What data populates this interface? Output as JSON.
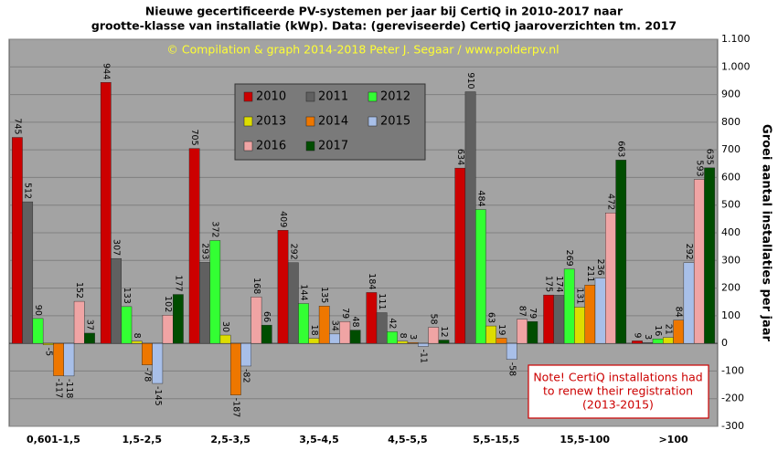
{
  "chart_data": {
    "type": "bar",
    "title": [
      "Nieuwe gecertificeerde PV-systemen per jaar bij CertiQ in 2010-2017 naar",
      "grootte-klasse van installatie (kWp). Data: (gereviseerde) CertiQ jaaroverzichten tm. 2017"
    ],
    "copyright": "© Compilation & graph 2014-2018 Peter J. Segaar / www.polderpv.nl",
    "note": [
      "Note! CertiQ installations had",
      "to renew their registration",
      "(2013-2015)"
    ],
    "ylabel": "Groei aantal installaties per jaar",
    "categories": [
      "0,601-1,5",
      "1,5-2,5",
      "2,5-3,5",
      "3,5-4,5",
      "4,5-5,5",
      "5,5-15,5",
      "15,5-100",
      ">100"
    ],
    "series": [
      {
        "name": "2010",
        "color": "#cc0000",
        "values": [
          745,
          944,
          705,
          409,
          184,
          634,
          175,
          9
        ]
      },
      {
        "name": "2011",
        "color": "#606060",
        "values": [
          512,
          307,
          293,
          292,
          111,
          910,
          174,
          3
        ]
      },
      {
        "name": "2012",
        "color": "#33ff33",
        "values": [
          90,
          133,
          372,
          144,
          42,
          484,
          269,
          16
        ]
      },
      {
        "name": "2013",
        "color": "#dddd00",
        "values": [
          -5,
          8,
          30,
          18,
          8,
          63,
          131,
          21
        ]
      },
      {
        "name": "2014",
        "color": "#ee7700",
        "values": [
          -117,
          -78,
          -187,
          135,
          3,
          19,
          211,
          84
        ]
      },
      {
        "name": "2015",
        "color": "#a8bfe8",
        "values": [
          -118,
          -145,
          -82,
          34,
          -11,
          -58,
          236,
          292
        ]
      },
      {
        "name": "2016",
        "color": "#f0a4a4",
        "values": [
          152,
          102,
          168,
          79,
          58,
          87,
          472,
          593
        ]
      },
      {
        "name": "2017",
        "color": "#004d00",
        "values": [
          37,
          177,
          66,
          48,
          12,
          79,
          663,
          635
        ]
      }
    ],
    "ylim": [
      -300,
      1100
    ],
    "yticks": [
      -300,
      -200,
      -100,
      0,
      100,
      200,
      300,
      400,
      500,
      600,
      700,
      800,
      900,
      {
        "value": 1000,
        "label": "1.000"
      },
      {
        "value": 1100,
        "label": "1.100"
      }
    ],
    "grid": true,
    "axis_side": "right"
  }
}
